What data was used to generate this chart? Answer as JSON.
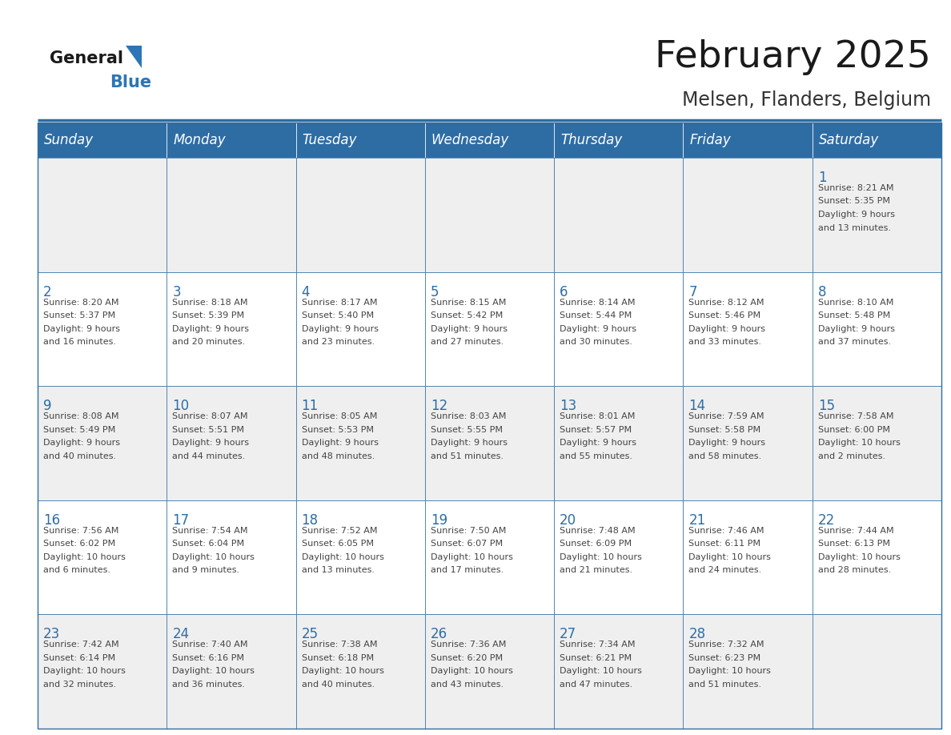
{
  "title": "February 2025",
  "subtitle": "Melsen, Flanders, Belgium",
  "days_of_week": [
    "Sunday",
    "Monday",
    "Tuesday",
    "Wednesday",
    "Thursday",
    "Friday",
    "Saturday"
  ],
  "header_bg": "#2E6DA4",
  "header_text": "#FFFFFF",
  "cell_bg_light": "#EFEFEF",
  "cell_bg_white": "#FFFFFF",
  "cell_border": "#2E6DA4",
  "title_color": "#1a1a1a",
  "subtitle_color": "#333333",
  "day_number_color": "#2E6DA4",
  "cell_text_color": "#444444",
  "logo_general_color": "#1a1a1a",
  "logo_blue_color": "#2E75B6",
  "calendar_data": [
    [
      null,
      null,
      null,
      null,
      null,
      null,
      {
        "day": 1,
        "sunrise": "8:21 AM",
        "sunset": "5:35 PM",
        "daylight": "9 hours and 13 minutes."
      }
    ],
    [
      {
        "day": 2,
        "sunrise": "8:20 AM",
        "sunset": "5:37 PM",
        "daylight": "9 hours and 16 minutes."
      },
      {
        "day": 3,
        "sunrise": "8:18 AM",
        "sunset": "5:39 PM",
        "daylight": "9 hours and 20 minutes."
      },
      {
        "day": 4,
        "sunrise": "8:17 AM",
        "sunset": "5:40 PM",
        "daylight": "9 hours and 23 minutes."
      },
      {
        "day": 5,
        "sunrise": "8:15 AM",
        "sunset": "5:42 PM",
        "daylight": "9 hours and 27 minutes."
      },
      {
        "day": 6,
        "sunrise": "8:14 AM",
        "sunset": "5:44 PM",
        "daylight": "9 hours and 30 minutes."
      },
      {
        "day": 7,
        "sunrise": "8:12 AM",
        "sunset": "5:46 PM",
        "daylight": "9 hours and 33 minutes."
      },
      {
        "day": 8,
        "sunrise": "8:10 AM",
        "sunset": "5:48 PM",
        "daylight": "9 hours and 37 minutes."
      }
    ],
    [
      {
        "day": 9,
        "sunrise": "8:08 AM",
        "sunset": "5:49 PM",
        "daylight": "9 hours and 40 minutes."
      },
      {
        "day": 10,
        "sunrise": "8:07 AM",
        "sunset": "5:51 PM",
        "daylight": "9 hours and 44 minutes."
      },
      {
        "day": 11,
        "sunrise": "8:05 AM",
        "sunset": "5:53 PM",
        "daylight": "9 hours and 48 minutes."
      },
      {
        "day": 12,
        "sunrise": "8:03 AM",
        "sunset": "5:55 PM",
        "daylight": "9 hours and 51 minutes."
      },
      {
        "day": 13,
        "sunrise": "8:01 AM",
        "sunset": "5:57 PM",
        "daylight": "9 hours and 55 minutes."
      },
      {
        "day": 14,
        "sunrise": "7:59 AM",
        "sunset": "5:58 PM",
        "daylight": "9 hours and 58 minutes."
      },
      {
        "day": 15,
        "sunrise": "7:58 AM",
        "sunset": "6:00 PM",
        "daylight": "10 hours and 2 minutes."
      }
    ],
    [
      {
        "day": 16,
        "sunrise": "7:56 AM",
        "sunset": "6:02 PM",
        "daylight": "10 hours and 6 minutes."
      },
      {
        "day": 17,
        "sunrise": "7:54 AM",
        "sunset": "6:04 PM",
        "daylight": "10 hours and 9 minutes."
      },
      {
        "day": 18,
        "sunrise": "7:52 AM",
        "sunset": "6:05 PM",
        "daylight": "10 hours and 13 minutes."
      },
      {
        "day": 19,
        "sunrise": "7:50 AM",
        "sunset": "6:07 PM",
        "daylight": "10 hours and 17 minutes."
      },
      {
        "day": 20,
        "sunrise": "7:48 AM",
        "sunset": "6:09 PM",
        "daylight": "10 hours and 21 minutes."
      },
      {
        "day": 21,
        "sunrise": "7:46 AM",
        "sunset": "6:11 PM",
        "daylight": "10 hours and 24 minutes."
      },
      {
        "day": 22,
        "sunrise": "7:44 AM",
        "sunset": "6:13 PM",
        "daylight": "10 hours and 28 minutes."
      }
    ],
    [
      {
        "day": 23,
        "sunrise": "7:42 AM",
        "sunset": "6:14 PM",
        "daylight": "10 hours and 32 minutes."
      },
      {
        "day": 24,
        "sunrise": "7:40 AM",
        "sunset": "6:16 PM",
        "daylight": "10 hours and 36 minutes."
      },
      {
        "day": 25,
        "sunrise": "7:38 AM",
        "sunset": "6:18 PM",
        "daylight": "10 hours and 40 minutes."
      },
      {
        "day": 26,
        "sunrise": "7:36 AM",
        "sunset": "6:20 PM",
        "daylight": "10 hours and 43 minutes."
      },
      {
        "day": 27,
        "sunrise": "7:34 AM",
        "sunset": "6:21 PM",
        "daylight": "10 hours and 47 minutes."
      },
      {
        "day": 28,
        "sunrise": "7:32 AM",
        "sunset": "6:23 PM",
        "daylight": "10 hours and 51 minutes."
      },
      null
    ]
  ],
  "figsize": [
    11.88,
    9.18
  ],
  "dpi": 100
}
